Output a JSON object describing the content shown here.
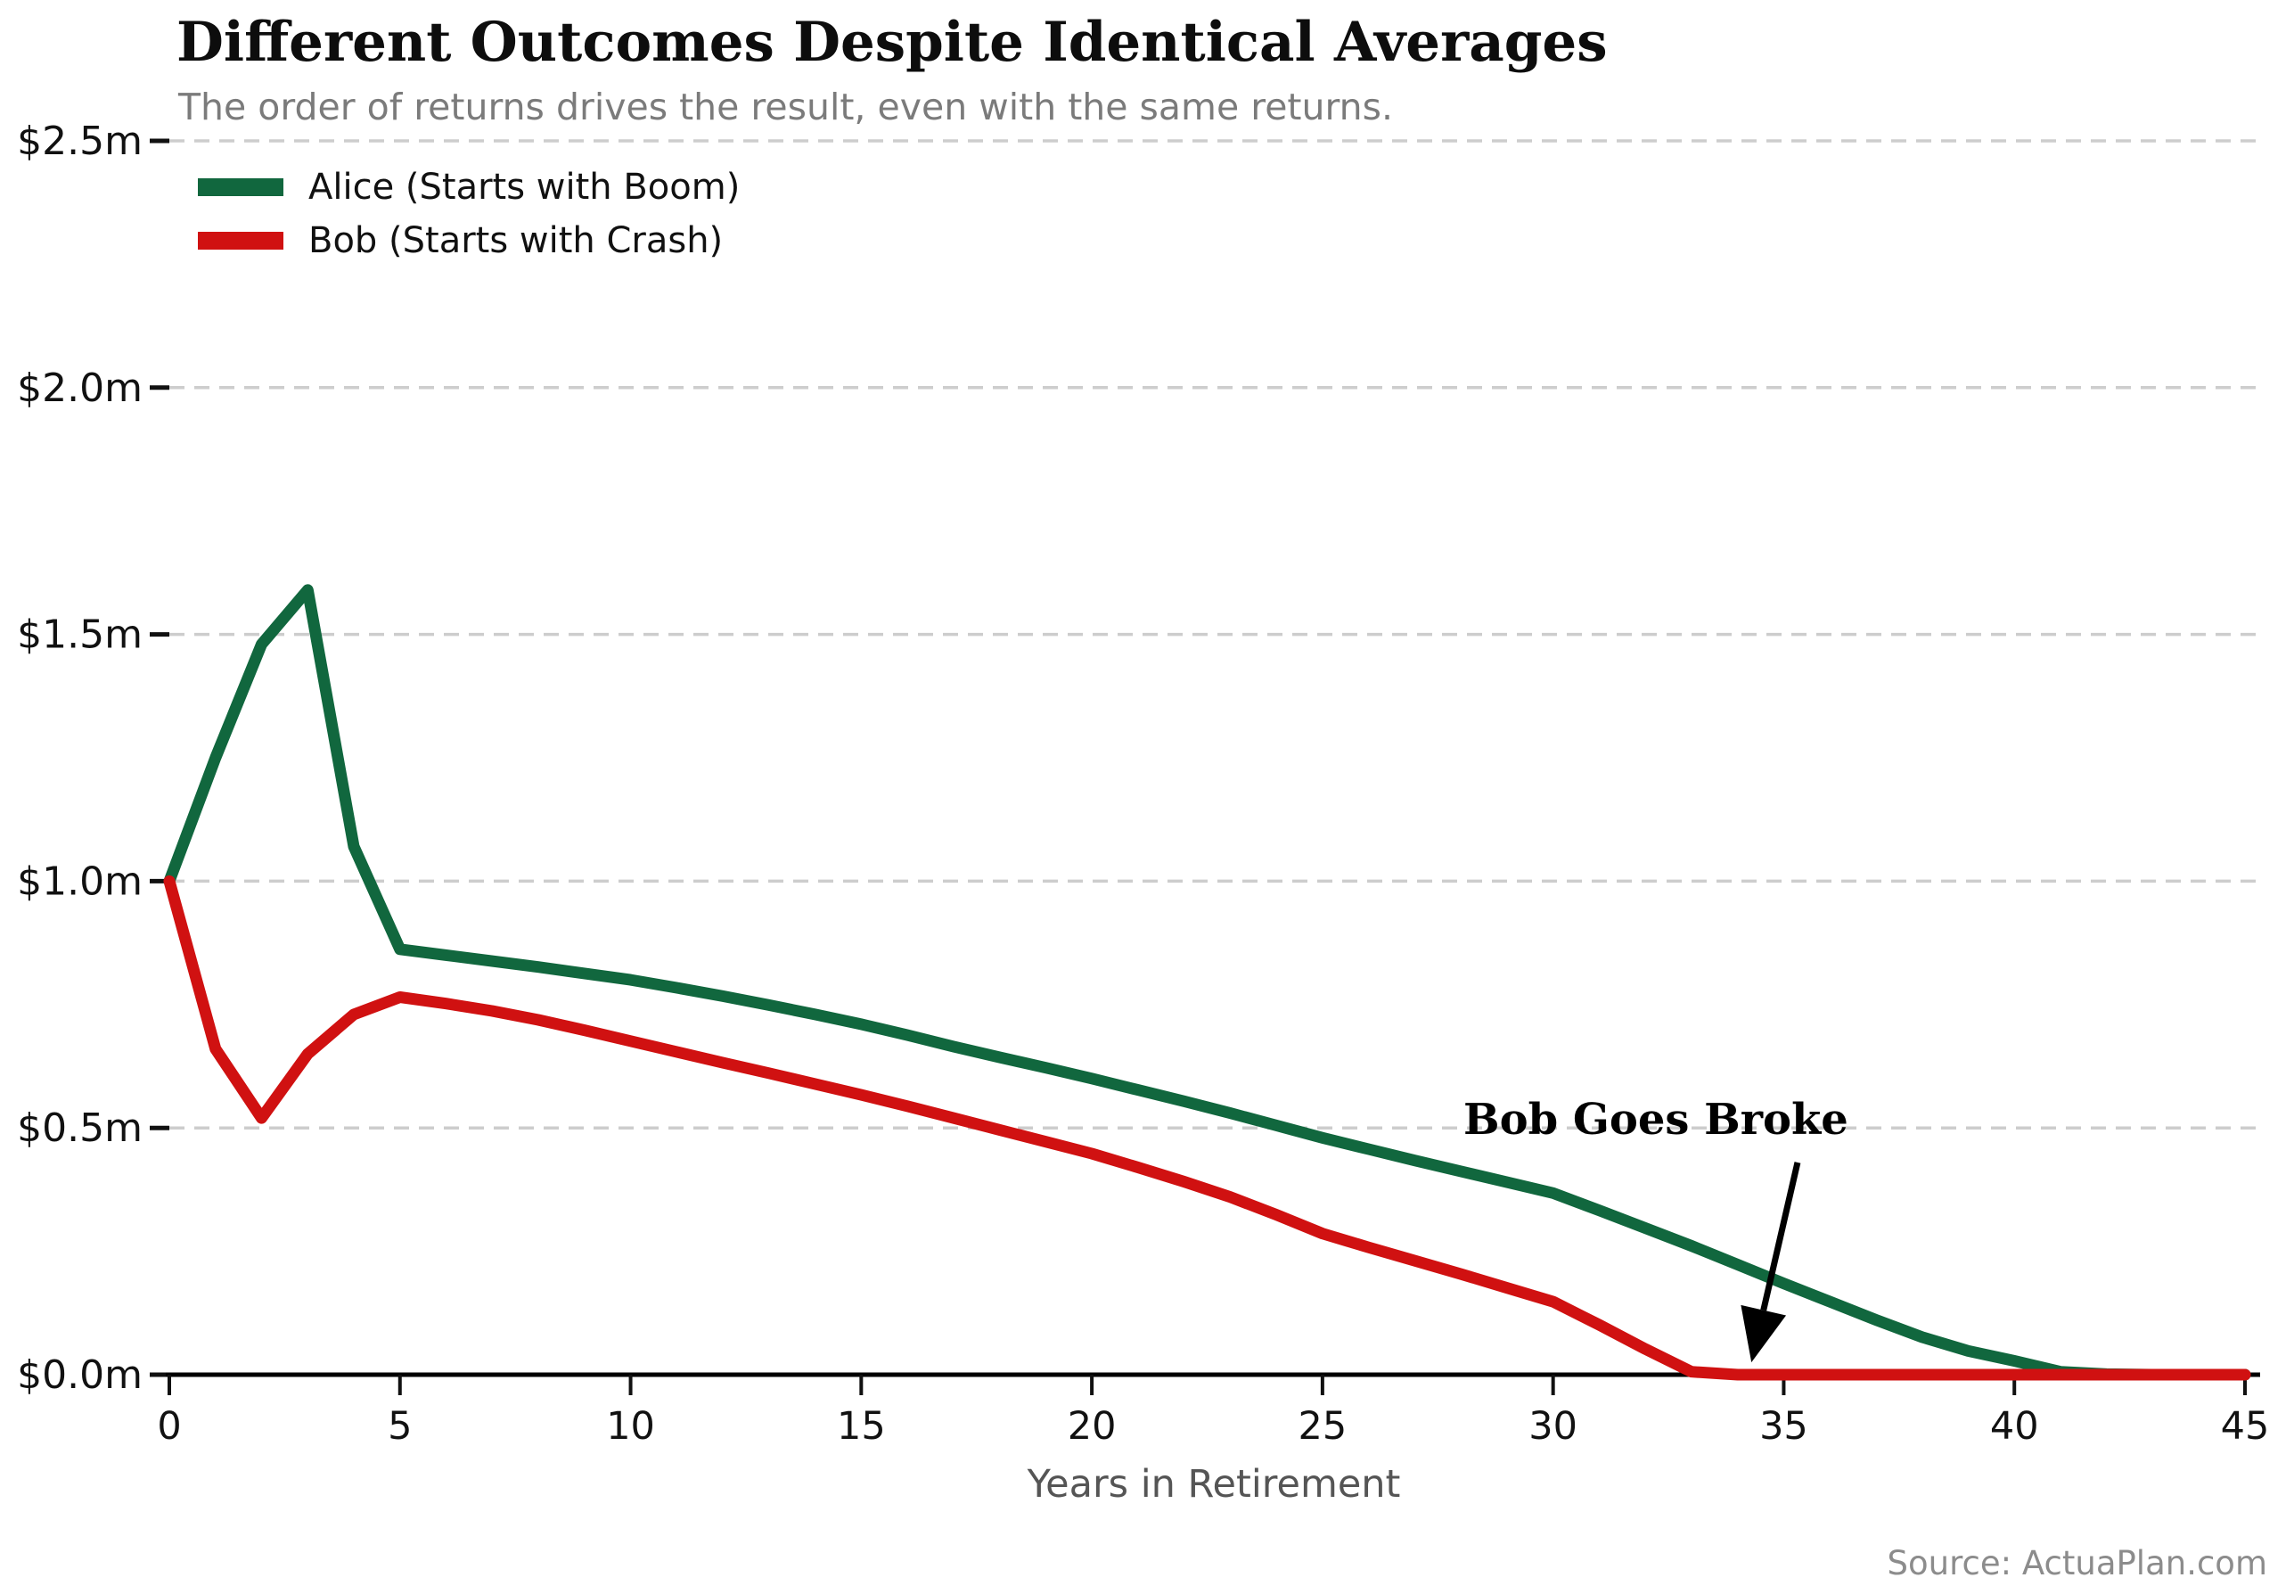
{
  "chart": {
    "title": "Different Outcomes Despite Identical Averages",
    "subtitle": "The order of returns drives the result, even with the same returns.",
    "x_axis_label": "Years in Retirement",
    "source": "Source: ActuaPlan.com"
  },
  "colors": {
    "alice": "#11673e",
    "bob": "#d01111",
    "grid": "#cdcdcd",
    "axis": "#000000",
    "tick_label": "#111111",
    "subtitle": "#7b7b7b",
    "axis_label": "#555555",
    "source": "#8c8c8c"
  },
  "chart_data": {
    "type": "line",
    "title": "Different Outcomes Despite Identical Averages",
    "subtitle": "The order of returns drives the result, even with the same returns.",
    "xlabel": "Years in Retirement",
    "ylabel": "",
    "xlim": [
      0,
      45
    ],
    "ylim": [
      0,
      2.5
    ],
    "grid": "horizontal-dashed",
    "legend_position": "top-left",
    "x": [
      0,
      1,
      2,
      3,
      4,
      5,
      6,
      7,
      8,
      9,
      10,
      11,
      12,
      13,
      14,
      15,
      16,
      17,
      18,
      19,
      20,
      21,
      22,
      23,
      24,
      25,
      26,
      27,
      28,
      29,
      30,
      31,
      32,
      33,
      34,
      35,
      36,
      37,
      38,
      39,
      40,
      41,
      42,
      43,
      44,
      45
    ],
    "x_ticks": [
      0,
      5,
      10,
      15,
      20,
      25,
      30,
      35,
      40,
      45
    ],
    "y_ticks": [
      {
        "value": 0.0,
        "label": "$0.0m"
      },
      {
        "value": 0.5,
        "label": "$0.5m"
      },
      {
        "value": 1.0,
        "label": "$1.0m"
      },
      {
        "value": 1.5,
        "label": "$1.5m"
      },
      {
        "value": 2.0,
        "label": "$2.0m"
      },
      {
        "value": 2.5,
        "label": "$2.5m"
      }
    ],
    "series": [
      {
        "name": "Alice (Starts with Boom)",
        "color": "#11673e",
        "values": [
          1.0,
          1.25,
          1.48,
          1.59,
          1.07,
          0.862,
          0.85,
          0.838,
          0.826,
          0.813,
          0.8,
          0.784,
          0.767,
          0.749,
          0.73,
          0.71,
          0.688,
          0.665,
          0.643,
          0.622,
          0.6,
          0.577,
          0.554,
          0.53,
          0.505,
          0.48,
          0.457,
          0.434,
          0.412,
          0.39,
          0.368,
          0.333,
          0.297,
          0.261,
          0.223,
          0.185,
          0.148,
          0.111,
          0.076,
          0.048,
          0.028,
          0.006,
          0.001,
          0.0,
          0.0,
          0.0
        ]
      },
      {
        "name": "Bob (Starts with Crash)",
        "color": "#d01111",
        "values": [
          1.0,
          0.66,
          0.52,
          0.65,
          0.73,
          0.765,
          0.752,
          0.737,
          0.719,
          0.698,
          0.676,
          0.654,
          0.632,
          0.611,
          0.589,
          0.567,
          0.544,
          0.52,
          0.496,
          0.472,
          0.448,
          0.42,
          0.391,
          0.36,
          0.324,
          0.286,
          0.258,
          0.231,
          0.204,
          0.176,
          0.148,
          0.101,
          0.052,
          0.006,
          0.0,
          0.0,
          0.0,
          0.0,
          0.0,
          0.0,
          0.0,
          0.0,
          0.0,
          0.0,
          0.0,
          0.0
        ]
      }
    ],
    "annotation": {
      "text": "Bob Goes Broke",
      "arrow_start_year": 35.3,
      "arrow_start_value": 0.43,
      "arrow_tip_year": 34.3,
      "arrow_tip_value": 0.025
    }
  }
}
